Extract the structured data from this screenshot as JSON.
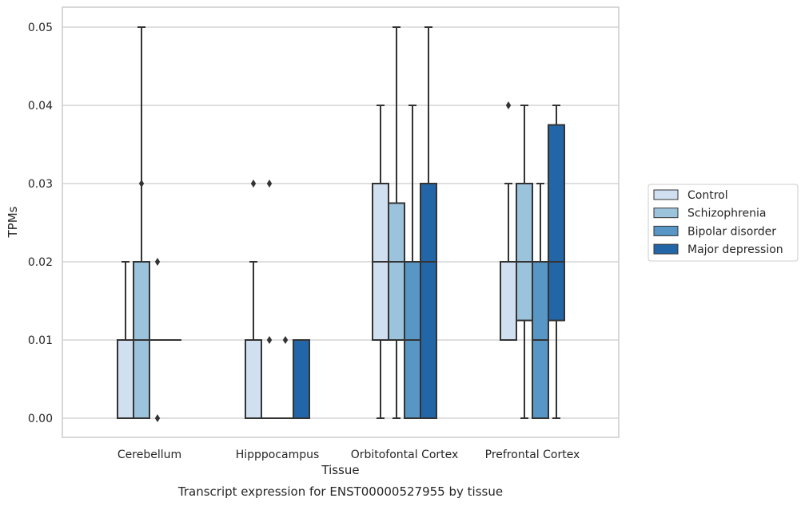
{
  "caption": "Transcript expression for ENST00000527955 by tissue",
  "chart_data": {
    "type": "box",
    "xlabel": "Tissue",
    "ylabel": "TPMs",
    "ylim": [
      -0.0025,
      0.0525
    ],
    "yticks": [
      0.0,
      0.01,
      0.02,
      0.03,
      0.04,
      0.05
    ],
    "ytick_labels": [
      "0.00",
      "0.01",
      "0.02",
      "0.03",
      "0.04",
      "0.05"
    ],
    "grid": "horizontal",
    "legend_position": "right",
    "categories": [
      "Cerebellum",
      "Hipppocampus",
      "Orbitofontal Cortex",
      "Prefrontal Cortex"
    ],
    "series": [
      {
        "name": "Control",
        "color": "#d1e0f0",
        "boxes": [
          {
            "whisker_low": 0.0,
            "q1": 0.0,
            "median": 0.0,
            "q3": 0.01,
            "whisker_high": 0.02,
            "outliers": []
          },
          {
            "whisker_low": 0.0,
            "q1": 0.0,
            "median": 0.0,
            "q3": 0.01,
            "whisker_high": 0.02,
            "outliers": [
              0.03
            ]
          },
          {
            "whisker_low": 0.0,
            "q1": 0.01,
            "median": 0.02,
            "q3": 0.03,
            "whisker_high": 0.04,
            "outliers": []
          },
          {
            "whisker_low": 0.01,
            "q1": 0.01,
            "median": 0.02,
            "q3": 0.02,
            "whisker_high": 0.03,
            "outliers": [
              0.04
            ]
          }
        ]
      },
      {
        "name": "Schizophrenia",
        "color": "#9cc3dc",
        "boxes": [
          {
            "whisker_low": 0.0,
            "q1": 0.0,
            "median": 0.01,
            "q3": 0.02,
            "whisker_high": 0.05,
            "outliers": [
              0.03
            ]
          },
          {
            "whisker_low": 0.0,
            "q1": 0.0,
            "median": 0.0,
            "q3": 0.0,
            "whisker_high": 0.0,
            "outliers": [
              0.01,
              0.03
            ]
          },
          {
            "whisker_low": 0.0,
            "q1": 0.01,
            "median": 0.02,
            "q3": 0.0275,
            "whisker_high": 0.05,
            "outliers": []
          },
          {
            "whisker_low": 0.0,
            "q1": 0.0125,
            "median": 0.02,
            "q3": 0.03,
            "whisker_high": 0.04,
            "outliers": []
          }
        ]
      },
      {
        "name": "Bipolar disorder",
        "color": "#5897c5",
        "boxes": [
          {
            "whisker_low": 0.01,
            "q1": 0.01,
            "median": 0.01,
            "q3": 0.01,
            "whisker_high": 0.01,
            "outliers": [
              0.0,
              0.02
            ]
          },
          {
            "whisker_low": 0.0,
            "q1": 0.0,
            "median": 0.0,
            "q3": 0.0,
            "whisker_high": 0.0,
            "outliers": [
              0.01
            ]
          },
          {
            "whisker_low": 0.0,
            "q1": 0.0,
            "median": 0.01,
            "q3": 0.02,
            "whisker_high": 0.04,
            "outliers": []
          },
          {
            "whisker_low": 0.0,
            "q1": 0.0,
            "median": 0.01,
            "q3": 0.02,
            "whisker_high": 0.03,
            "outliers": []
          }
        ]
      },
      {
        "name": "Major depression",
        "color": "#2366a8",
        "boxes": [
          {
            "whisker_low": 0.01,
            "q1": 0.01,
            "median": 0.01,
            "q3": 0.01,
            "whisker_high": 0.01,
            "outliers": []
          },
          {
            "whisker_low": 0.0,
            "q1": 0.0,
            "median": 0.0,
            "q3": 0.01,
            "whisker_high": 0.01,
            "outliers": []
          },
          {
            "whisker_low": 0.0,
            "q1": 0.0,
            "median": 0.02,
            "q3": 0.03,
            "whisker_high": 0.05,
            "outliers": []
          },
          {
            "whisker_low": 0.0,
            "q1": 0.0125,
            "median": 0.02,
            "q3": 0.0375,
            "whisker_high": 0.04,
            "outliers": []
          }
        ]
      }
    ]
  }
}
